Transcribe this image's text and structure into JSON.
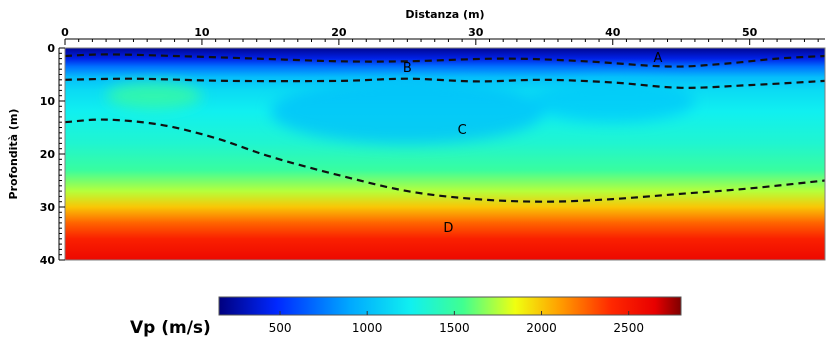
{
  "chart_data": {
    "type": "heatmap",
    "title": "",
    "xlabel": "Distanza (m)",
    "ylabel": "Profondità (m)",
    "x_axis_position": "top",
    "xlim": [
      0,
      55.5
    ],
    "ylim": [
      0,
      40
    ],
    "y_inverted": true,
    "x_ticks": [
      0,
      10,
      20,
      30,
      40,
      50
    ],
    "y_ticks": [
      0,
      10,
      20,
      30,
      40
    ],
    "colorscale": {
      "title": "Vp (m/s)",
      "min": 150,
      "max": 2800,
      "ticks": [
        500,
        1000,
        1500,
        2000,
        2500
      ],
      "stops": [
        {
          "value": 150,
          "color": "#00007f"
        },
        {
          "value": 480,
          "color": "#0028ff"
        },
        {
          "value": 900,
          "color": "#00a8ff"
        },
        {
          "value": 1250,
          "color": "#10f0f0"
        },
        {
          "value": 1550,
          "color": "#40ff90"
        },
        {
          "value": 1850,
          "color": "#f0ff10"
        },
        {
          "value": 2100,
          "color": "#ffa000"
        },
        {
          "value": 2400,
          "color": "#ff2800"
        },
        {
          "value": 2650,
          "color": "#e80000"
        },
        {
          "value": 2800,
          "color": "#7f0000"
        }
      ]
    },
    "velocity_profile": [
      {
        "depth": 0,
        "vp": 200
      },
      {
        "depth": 2,
        "vp": 420
      },
      {
        "depth": 3.5,
        "vp": 720
      },
      {
        "depth": 5.5,
        "vp": 1000
      },
      {
        "depth": 8,
        "vp": 1150
      },
      {
        "depth": 12,
        "vp": 1250
      },
      {
        "depth": 18,
        "vp": 1350
      },
      {
        "depth": 23,
        "vp": 1500
      },
      {
        "depth": 27,
        "vp": 1750
      },
      {
        "depth": 30,
        "vp": 2000
      },
      {
        "depth": 33,
        "vp": 2250
      },
      {
        "depth": 36,
        "vp": 2450
      },
      {
        "depth": 40,
        "vp": 2600
      }
    ],
    "zone_boundaries": [
      {
        "name": "A-B",
        "points": [
          [
            0,
            1.5
          ],
          [
            3,
            1.2
          ],
          [
            8,
            1.5
          ],
          [
            14,
            2.0
          ],
          [
            20,
            2.5
          ],
          [
            25,
            2.5
          ],
          [
            32,
            2.0
          ],
          [
            38,
            2.5
          ],
          [
            44,
            3.5
          ],
          [
            48,
            3.0
          ],
          [
            52,
            2.0
          ],
          [
            55.5,
            1.5
          ]
        ]
      },
      {
        "name": "B-C",
        "points": [
          [
            0,
            6.0
          ],
          [
            5,
            5.8
          ],
          [
            12,
            6.2
          ],
          [
            20,
            6.2
          ],
          [
            25,
            5.8
          ],
          [
            30,
            6.3
          ],
          [
            35,
            6.0
          ],
          [
            40,
            6.5
          ],
          [
            45,
            7.5
          ],
          [
            50,
            7.0
          ],
          [
            55.5,
            6.2
          ]
        ]
      },
      {
        "name": "C-D",
        "points": [
          [
            0,
            14.0
          ],
          [
            3,
            13.5
          ],
          [
            7,
            14.5
          ],
          [
            11,
            17.0
          ],
          [
            15,
            20.5
          ],
          [
            20,
            24.0
          ],
          [
            25,
            27.0
          ],
          [
            30,
            28.5
          ],
          [
            35,
            29.0
          ],
          [
            40,
            28.5
          ],
          [
            45,
            27.5
          ],
          [
            50,
            26.5
          ],
          [
            55.5,
            25.0
          ]
        ]
      }
    ],
    "zones": [
      {
        "label": "A",
        "x": 43.3,
        "depth": 1.7
      },
      {
        "label": "B",
        "x": 25,
        "depth": 3.6
      },
      {
        "label": "C",
        "x": 29,
        "depth": 15.3
      },
      {
        "label": "D",
        "x": 28,
        "depth": 33.8
      }
    ],
    "anomalies": [
      {
        "x": 6.5,
        "depth": 9,
        "radius_x": 3.5,
        "radius_depth": 2.5,
        "delta_vp": 350
      },
      {
        "x": 25,
        "depth": 12,
        "radius_x": 10,
        "radius_depth": 6,
        "delta_vp": -250
      },
      {
        "x": 40,
        "depth": 10,
        "radius_x": 6,
        "radius_depth": 4,
        "delta_vp": -150
      }
    ],
    "legend": "bottom-center"
  }
}
